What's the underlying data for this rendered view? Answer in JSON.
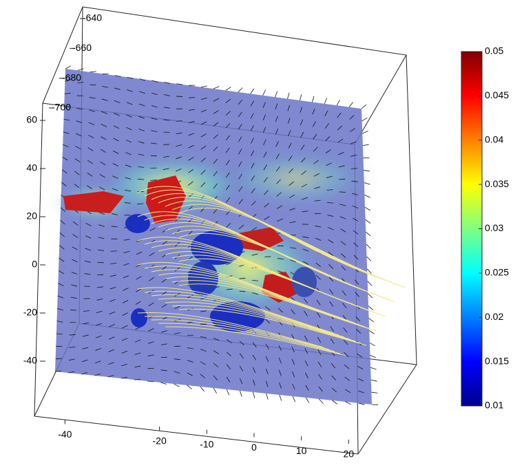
{
  "chart_data": {
    "type": "volume-slice",
    "xlim": [
      -45,
      22
    ],
    "xticks": [
      -40,
      -20,
      -10,
      0,
      10,
      20
    ],
    "ylim": [
      -50,
      70
    ],
    "yticks": [
      60,
      40,
      20,
      0,
      -20,
      -40
    ],
    "zlim": [
      -700,
      -640
    ],
    "zticks": [
      -640,
      -660,
      -680,
      -700
    ],
    "colorbar": {
      "lim": [
        0.01,
        0.05
      ],
      "ticks": [
        0.01,
        0.015,
        0.02,
        0.025,
        0.03,
        0.035,
        0.04,
        0.045,
        0.05
      ],
      "colors": [
        "#00008f",
        "#0000ff",
        "#0080ff",
        "#00ffff",
        "#80ff80",
        "#ffff00",
        "#ff8000",
        "#ff0000",
        "#800000"
      ]
    }
  }
}
